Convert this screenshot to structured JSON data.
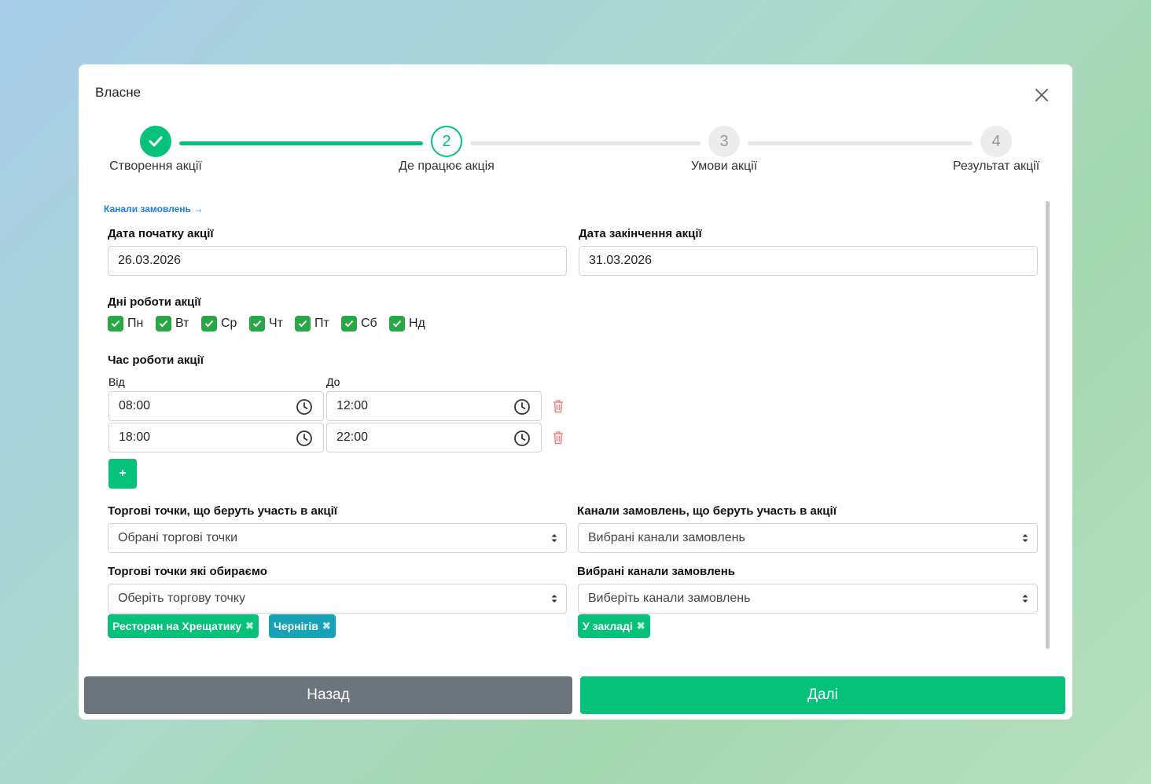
{
  "modal": {
    "title": "Власне"
  },
  "stepper": {
    "steps": [
      {
        "label": "Створення акції",
        "number": "",
        "state": "done"
      },
      {
        "label": "Де працює акція",
        "number": "2",
        "state": "active"
      },
      {
        "label": "Умови акції",
        "number": "3",
        "state": "pending"
      },
      {
        "label": "Результат акції",
        "number": "4",
        "state": "pending"
      }
    ]
  },
  "channels_link": "Канали замовлень →",
  "dates": {
    "start_label": "Дата початку акції",
    "start_value": "26.03.2026",
    "end_label": "Дата закінчення акції",
    "end_value": "31.03.2026"
  },
  "days": {
    "label": "Дні роботи акції",
    "items": [
      {
        "label": "Пн",
        "checked": true
      },
      {
        "label": "Вт",
        "checked": true
      },
      {
        "label": "Ср",
        "checked": true
      },
      {
        "label": "Чт",
        "checked": true
      },
      {
        "label": "Пт",
        "checked": true
      },
      {
        "label": "Сб",
        "checked": true
      },
      {
        "label": "Нд",
        "checked": true
      }
    ]
  },
  "time": {
    "label": "Час роботи акції",
    "from_label": "Від",
    "to_label": "До",
    "ranges": [
      {
        "from": "08:00",
        "to": "12:00"
      },
      {
        "from": "18:00",
        "to": "22:00"
      }
    ],
    "add_label": "+"
  },
  "locations": {
    "label": "Торгові точки, що беруть участь в акції",
    "value": "Обрані торгові точки",
    "pick_label": "Торгові точки які обираємо",
    "pick_placeholder": "Оберіть торгову точку",
    "tags": [
      "Ресторан на Хрещатику",
      "Чернігів"
    ]
  },
  "channels": {
    "label": "Канали замовлень, що беруть участь в акції",
    "value": "Вибрані канали замовлень",
    "pick_label": "Вибрані канали замовлень",
    "pick_placeholder": "Виберіть канали замовлень",
    "tags": [
      "У закладі"
    ]
  },
  "footer": {
    "back_label": "Назад",
    "next_label": "Далі"
  },
  "colors": {
    "accent": "#05c17a",
    "checkbox": "#28a745",
    "tag_blue": "#17a2b8",
    "back_button": "#6c757d",
    "danger": "#f08080"
  }
}
